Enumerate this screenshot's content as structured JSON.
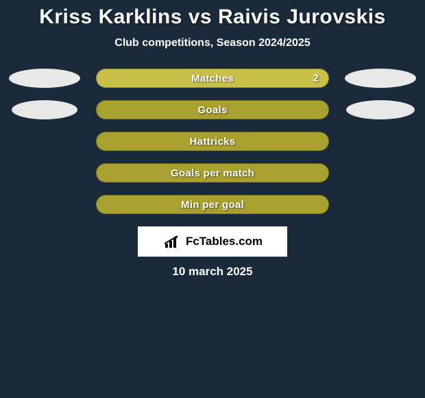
{
  "title": "Kriss Karklins vs Raivis Jurovskis",
  "subtitle": "Club competitions, Season 2024/2025",
  "date": "10 march 2025",
  "logo_text": "FcTables.com",
  "colors": {
    "background": "#1a2a3a",
    "bar_fill": "#a9a12f",
    "bar_highlight": "#c9c04a",
    "ellipse_fill": "#e8e8e8",
    "text": "#ffffff",
    "logo_bg": "#ffffff",
    "logo_text": "#000000"
  },
  "stats": [
    {
      "label": "Matches",
      "value_right": "2",
      "show_left_ellipse": true,
      "show_right_ellipse": true,
      "left_ellipse_width": 104,
      "right_ellipse_width": 104,
      "fill_pct": 100,
      "highlight": true
    },
    {
      "label": "Goals",
      "value_right": "",
      "show_left_ellipse": true,
      "show_right_ellipse": true,
      "left_ellipse_width": 96,
      "right_ellipse_width": 100,
      "fill_pct": 100,
      "highlight": false
    },
    {
      "label": "Hattricks",
      "value_right": "",
      "show_left_ellipse": false,
      "show_right_ellipse": false,
      "fill_pct": 100,
      "highlight": false
    },
    {
      "label": "Goals per match",
      "value_right": "",
      "show_left_ellipse": false,
      "show_right_ellipse": false,
      "fill_pct": 100,
      "highlight": false
    },
    {
      "label": "Min per goal",
      "value_right": "",
      "show_left_ellipse": false,
      "show_right_ellipse": false,
      "fill_pct": 100,
      "highlight": false
    }
  ]
}
